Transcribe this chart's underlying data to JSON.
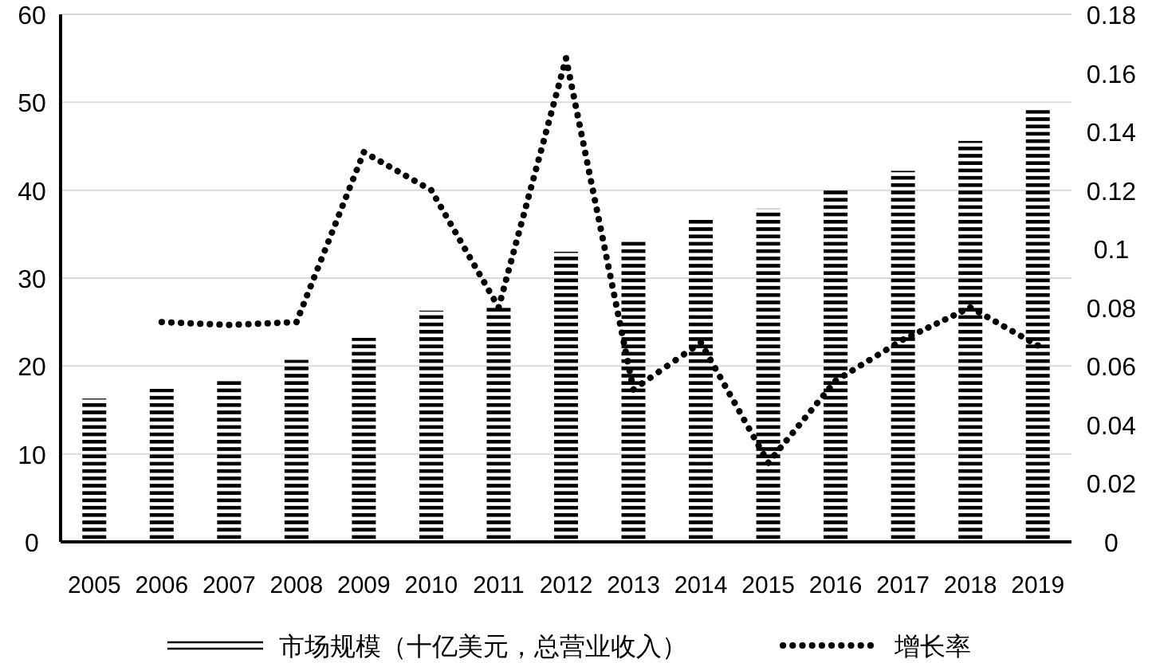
{
  "chart_data": {
    "type": "bar",
    "categories": [
      "2005",
      "2006",
      "2007",
      "2008",
      "2009",
      "2010",
      "2011",
      "2012",
      "2013",
      "2014",
      "2015",
      "2016",
      "2017",
      "2018",
      "2019"
    ],
    "series": [
      {
        "name": "市场规模（十亿美元，总营业收入）",
        "color": "#000000",
        "values": [
          16.3,
          17.4,
          18.5,
          20.7,
          23.2,
          26.3,
          27.0,
          33.0,
          34.4,
          36.8,
          37.9,
          40.2,
          42.2,
          45.6,
          49.1
        ]
      },
      {
        "name": "增长率",
        "type": "line",
        "axis": "y2",
        "color": "#000000",
        "line_style": "dotted",
        "values": [
          null,
          0.075,
          0.074,
          0.075,
          0.133,
          0.12,
          0.08,
          0.165,
          0.052,
          0.068,
          0.027,
          0.055,
          0.069,
          0.08,
          0.067
        ]
      }
    ],
    "ylim": [
      0,
      60
    ],
    "yticks": [
      0,
      10,
      20,
      30,
      40,
      50,
      60
    ],
    "y2lim": [
      0,
      0.18
    ],
    "y2ticks": [
      0,
      0.02,
      0.04,
      0.06,
      0.08,
      0.1,
      0.12,
      0.14,
      0.16,
      0.18
    ],
    "grid": "y",
    "legend": "bottom"
  }
}
